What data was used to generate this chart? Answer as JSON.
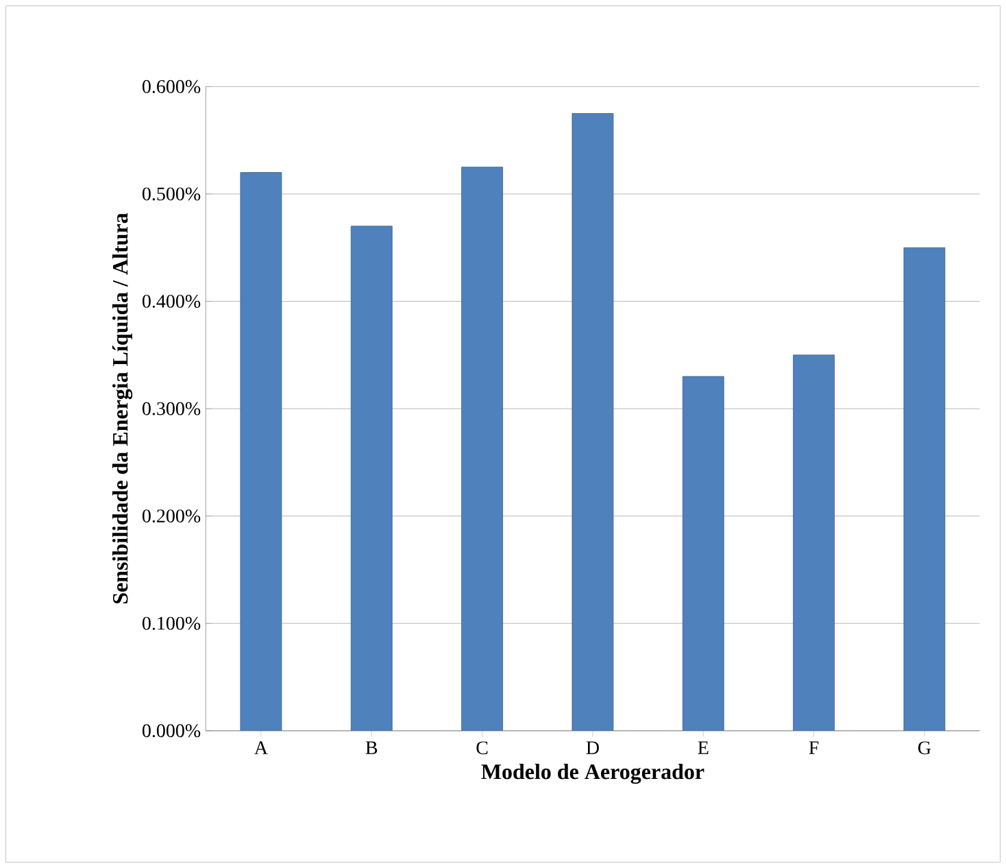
{
  "chart_data": {
    "type": "bar",
    "xlabel": "Modelo de Aerogerador",
    "ylabel": "Sensibilidade da Energia Líquida / Altura",
    "categories": [
      "A",
      "B",
      "C",
      "D",
      "E",
      "F",
      "G"
    ],
    "values": [
      0.52,
      0.47,
      0.525,
      0.575,
      0.33,
      0.35,
      0.45
    ],
    "color": "#4f81bd",
    "ylim": [
      0,
      0.6
    ],
    "yticks": [
      {
        "value": 0,
        "label": "0.000%"
      },
      {
        "value": 0.1,
        "label": "0.100%"
      },
      {
        "value": 0.2,
        "label": "0.200%"
      },
      {
        "value": 0.3,
        "label": "0.300%"
      },
      {
        "value": 0.4,
        "label": "0.400%"
      },
      {
        "value": 0.5,
        "label": "0.500%"
      },
      {
        "value": 0.6,
        "label": "0.600%"
      }
    ],
    "grid": "y"
  }
}
